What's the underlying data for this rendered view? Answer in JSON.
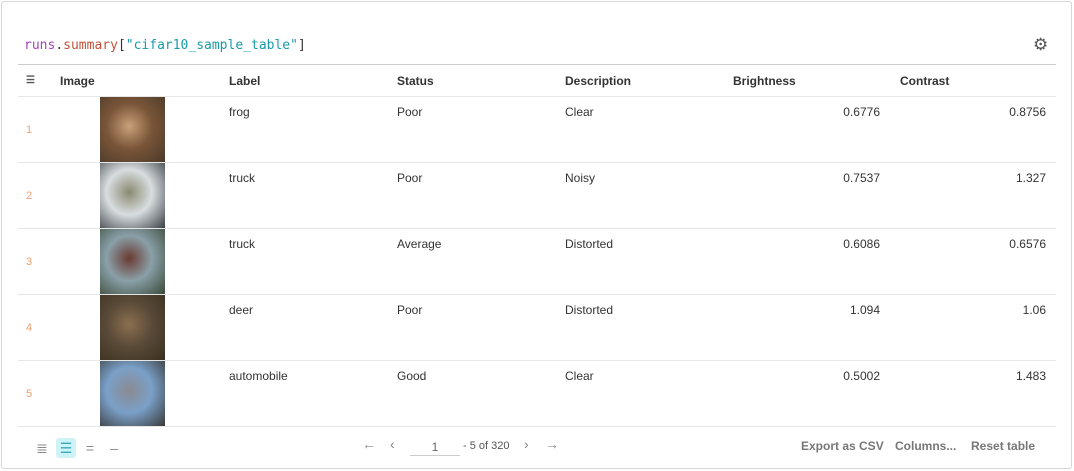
{
  "title": {
    "prefix": "runs",
    "dot": ".",
    "fn": "summary",
    "open": "[",
    "key": "\"cifar10_sample_table\"",
    "close": "]"
  },
  "columns": [
    "Image",
    "Label",
    "Status",
    "Description",
    "Brightness",
    "Contrast"
  ],
  "rows": [
    {
      "index": "1",
      "label": "frog",
      "status": "Poor",
      "description": "Clear",
      "brightness": "0.6776",
      "contrast": "0.8756",
      "image_colors": [
        "#7a5538",
        "#c9a27a",
        "#4a3a2a"
      ]
    },
    {
      "index": "2",
      "label": "truck",
      "status": "Poor",
      "description": "Noisy",
      "brightness": "0.7537",
      "contrast": "1.327",
      "image_colors": [
        "#d8dde0",
        "#8a8a70",
        "#3a3f45"
      ]
    },
    {
      "index": "3",
      "label": "truck",
      "status": "Average",
      "description": "Distorted",
      "brightness": "0.6086",
      "contrast": "0.6576",
      "image_colors": [
        "#8aa0a8",
        "#6a3a30",
        "#3a4a3a"
      ]
    },
    {
      "index": "4",
      "label": "deer",
      "status": "Poor",
      "description": "Distorted",
      "brightness": "1.094",
      "contrast": "1.06",
      "image_colors": [
        "#5a4a38",
        "#8a7050",
        "#3a3020"
      ]
    },
    {
      "index": "5",
      "label": "automobile",
      "status": "Good",
      "description": "Clear",
      "brightness": "0.5002",
      "contrast": "1.483",
      "image_colors": [
        "#7aa0c8",
        "#8a8a90",
        "#3a3a3a"
      ]
    }
  ],
  "pagination": {
    "page": "1",
    "range_text": "- 5 of 320"
  },
  "actions": {
    "export": "Export as CSV",
    "columns": "Columns...",
    "reset": "Reset table"
  },
  "icons": {
    "settings": "gear-icon",
    "filter": "filter-icon"
  },
  "active_density": 1
}
